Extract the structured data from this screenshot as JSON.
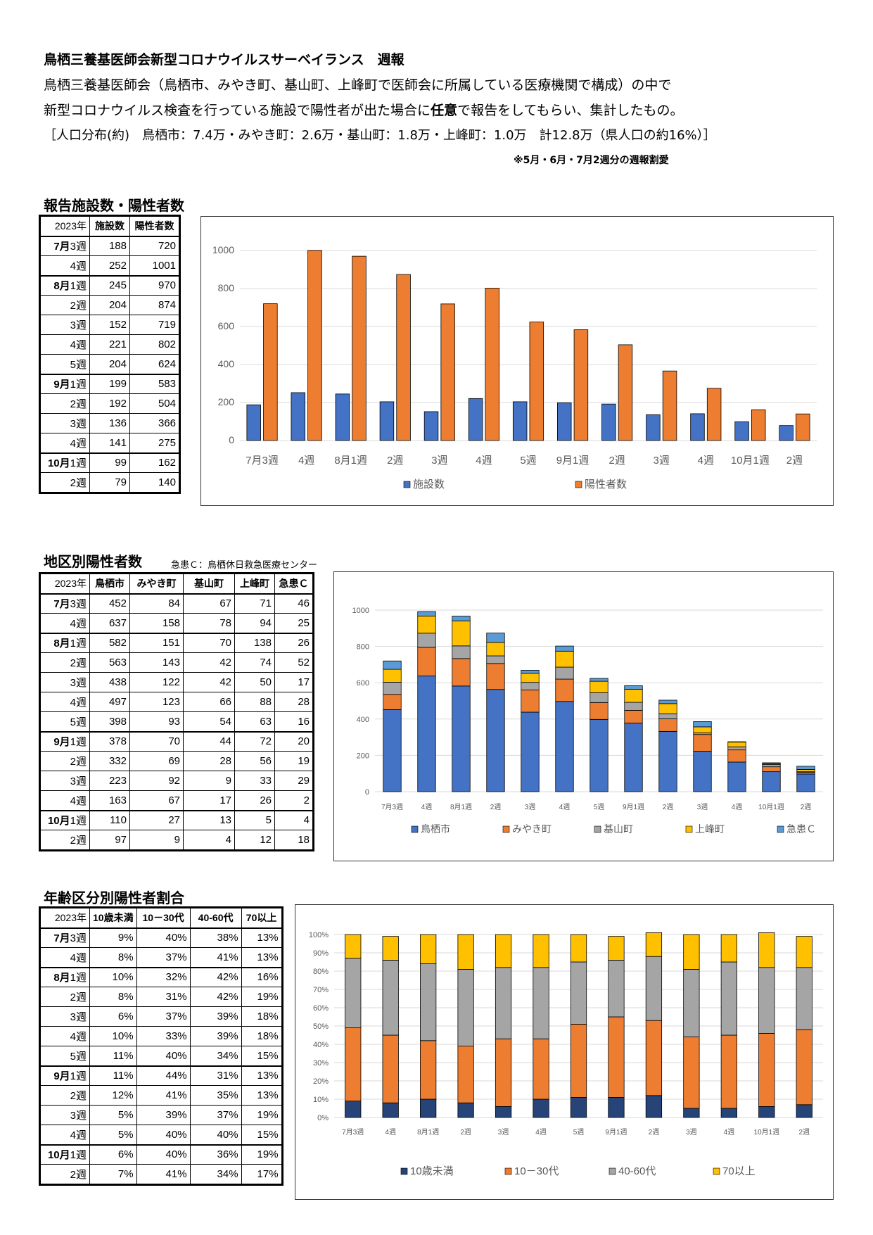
{
  "header": {
    "title": "鳥栖三養基医師会新型コロナウイルスサーベイランス　週報",
    "line1": "鳥栖三養基医師会（鳥栖市、みやき町、基山町、上峰町で医師会に所属している医療機関で構成）の中で",
    "line2_a": "新型コロナウイルス検査を行っている施設で陽性者が出た場合に",
    "line2_bold": "任意",
    "line2_b": "で報告をしてもらい、集計したもの。",
    "line3": "［人口分布(約)　鳥栖市：7.4万・みやき町：2.6万・基山町：1.8万・上峰町：1.0万　計12.8万（県人口の約16%）］",
    "note": "※5月・6月・7月2週分の週報割愛"
  },
  "section1": {
    "title": "報告施設数・陽性者数",
    "columns": [
      "2023年",
      "施設数",
      "陽性者数"
    ],
    "rows": [
      {
        "m": "7月",
        "w": "3週",
        "v": [
          "188",
          "720"
        ],
        "bt": true
      },
      {
        "m": "",
        "w": "4週",
        "v": [
          "252",
          "1001"
        ]
      },
      {
        "m": "8月",
        "w": "1週",
        "v": [
          "245",
          "970"
        ],
        "bt": true
      },
      {
        "m": "",
        "w": "2週",
        "v": [
          "204",
          "874"
        ]
      },
      {
        "m": "",
        "w": "3週",
        "v": [
          "152",
          "719"
        ]
      },
      {
        "m": "",
        "w": "4週",
        "v": [
          "221",
          "802"
        ]
      },
      {
        "m": "",
        "w": "5週",
        "v": [
          "204",
          "624"
        ]
      },
      {
        "m": "9月",
        "w": "1週",
        "v": [
          "199",
          "583"
        ],
        "bt": true
      },
      {
        "m": "",
        "w": "2週",
        "v": [
          "192",
          "504"
        ]
      },
      {
        "m": "",
        "w": "3週",
        "v": [
          "136",
          "366"
        ]
      },
      {
        "m": "",
        "w": "4週",
        "v": [
          "141",
          "275"
        ]
      },
      {
        "m": "10月",
        "w": "1週",
        "v": [
          "99",
          "162"
        ],
        "bt": true
      },
      {
        "m": "",
        "w": "2週",
        "v": [
          "79",
          "140"
        ]
      }
    ]
  },
  "section2": {
    "title": "地区別陽性者数",
    "subtitle": "急患Ｃ：鳥栖休日救急医療センター",
    "columns": [
      "2023年",
      "鳥栖市",
      "みやき町",
      "基山町",
      "上峰町",
      "急患Ｃ"
    ],
    "rows": [
      {
        "m": "7月",
        "w": "3週",
        "v": [
          "452",
          "84",
          "67",
          "71",
          "46"
        ],
        "bt": true
      },
      {
        "m": "",
        "w": "4週",
        "v": [
          "637",
          "158",
          "78",
          "94",
          "25"
        ]
      },
      {
        "m": "8月",
        "w": "1週",
        "v": [
          "582",
          "151",
          "70",
          "138",
          "26"
        ],
        "bt": true
      },
      {
        "m": "",
        "w": "2週",
        "v": [
          "563",
          "143",
          "42",
          "74",
          "52"
        ]
      },
      {
        "m": "",
        "w": "3週",
        "v": [
          "438",
          "122",
          "42",
          "50",
          "17"
        ]
      },
      {
        "m": "",
        "w": "4週",
        "v": [
          "497",
          "123",
          "66",
          "88",
          "28"
        ]
      },
      {
        "m": "",
        "w": "5週",
        "v": [
          "398",
          "93",
          "54",
          "63",
          "16"
        ]
      },
      {
        "m": "9月",
        "w": "1週",
        "v": [
          "378",
          "70",
          "44",
          "72",
          "20"
        ],
        "bt": true
      },
      {
        "m": "",
        "w": "2週",
        "v": [
          "332",
          "69",
          "28",
          "56",
          "19"
        ]
      },
      {
        "m": "",
        "w": "3週",
        "v": [
          "223",
          "92",
          "9",
          "33",
          "29"
        ]
      },
      {
        "m": "",
        "w": "4週",
        "v": [
          "163",
          "67",
          "17",
          "26",
          "2"
        ]
      },
      {
        "m": "10月",
        "w": "1週",
        "v": [
          "110",
          "27",
          "13",
          "5",
          "4"
        ],
        "bt": true
      },
      {
        "m": "",
        "w": "2週",
        "v": [
          "97",
          "9",
          "4",
          "12",
          "18"
        ]
      }
    ]
  },
  "section3": {
    "title": "年齢区分別陽性者割合",
    "columns": [
      "2023年",
      "10歳未満",
      "10－30代",
      "40-60代",
      "70以上"
    ],
    "rows": [
      {
        "m": "7月",
        "w": "3週",
        "v": [
          "9%",
          "40%",
          "38%",
          "13%"
        ],
        "bt": true
      },
      {
        "m": "",
        "w": "4週",
        "v": [
          "8%",
          "37%",
          "41%",
          "13%"
        ]
      },
      {
        "m": "8月",
        "w": "1週",
        "v": [
          "10%",
          "32%",
          "42%",
          "16%"
        ],
        "bt": true
      },
      {
        "m": "",
        "w": "2週",
        "v": [
          "8%",
          "31%",
          "42%",
          "19%"
        ]
      },
      {
        "m": "",
        "w": "3週",
        "v": [
          "6%",
          "37%",
          "39%",
          "18%"
        ]
      },
      {
        "m": "",
        "w": "4週",
        "v": [
          "10%",
          "33%",
          "39%",
          "18%"
        ]
      },
      {
        "m": "",
        "w": "5週",
        "v": [
          "11%",
          "40%",
          "34%",
          "15%"
        ]
      },
      {
        "m": "9月",
        "w": "1週",
        "v": [
          "11%",
          "44%",
          "31%",
          "13%"
        ],
        "bt": true
      },
      {
        "m": "",
        "w": "2週",
        "v": [
          "12%",
          "41%",
          "35%",
          "13%"
        ]
      },
      {
        "m": "",
        "w": "3週",
        "v": [
          "5%",
          "39%",
          "37%",
          "19%"
        ]
      },
      {
        "m": "",
        "w": "4週",
        "v": [
          "5%",
          "40%",
          "40%",
          "15%"
        ]
      },
      {
        "m": "10月",
        "w": "1週",
        "v": [
          "6%",
          "40%",
          "36%",
          "19%"
        ],
        "bt": true
      },
      {
        "m": "",
        "w": "2週",
        "v": [
          "7%",
          "41%",
          "34%",
          "17%"
        ]
      }
    ]
  },
  "chart_data": [
    {
      "type": "bar",
      "categories": [
        "7月3週",
        "4週",
        "8月1週",
        "2週",
        "3週",
        "4週",
        "5週",
        "9月1週",
        "2週",
        "3週",
        "4週",
        "10月1週",
        "2週"
      ],
      "series": [
        {
          "name": "施設数",
          "values": [
            188,
            252,
            245,
            204,
            152,
            221,
            204,
            199,
            192,
            136,
            141,
            99,
            79
          ],
          "color": "#4472C4"
        },
        {
          "name": "陽性者数",
          "values": [
            720,
            1001,
            970,
            874,
            719,
            802,
            624,
            583,
            504,
            366,
            275,
            162,
            140
          ],
          "color": "#ED7D31"
        }
      ],
      "ylim": [
        0,
        1000
      ],
      "yticks": [
        0,
        200,
        400,
        600,
        800,
        1000
      ],
      "legend": "bottom",
      "grid": true
    },
    {
      "type": "bar",
      "stacked": true,
      "categories": [
        "7月3週",
        "4週",
        "8月1週",
        "2週",
        "3週",
        "4週",
        "5週",
        "9月1週",
        "2週",
        "3週",
        "4週",
        "10月1週",
        "2週"
      ],
      "series": [
        {
          "name": "鳥栖市",
          "values": [
            452,
            637,
            582,
            563,
            438,
            497,
            398,
            378,
            332,
            223,
            163,
            110,
            97
          ],
          "color": "#4472C4"
        },
        {
          "name": "みやき町",
          "values": [
            84,
            158,
            151,
            143,
            122,
            123,
            93,
            70,
            69,
            92,
            67,
            27,
            9
          ],
          "color": "#ED7D31"
        },
        {
          "name": "基山町",
          "values": [
            67,
            78,
            70,
            42,
            42,
            66,
            54,
            44,
            28,
            9,
            17,
            13,
            4
          ],
          "color": "#A5A5A5"
        },
        {
          "name": "上峰町",
          "values": [
            71,
            94,
            138,
            74,
            50,
            88,
            63,
            72,
            56,
            33,
            26,
            5,
            12
          ],
          "color": "#FFC000"
        },
        {
          "name": "急患Ｃ",
          "values": [
            46,
            25,
            26,
            52,
            17,
            28,
            16,
            20,
            19,
            29,
            2,
            4,
            18
          ],
          "color": "#5B9BD5"
        }
      ],
      "ylim": [
        0,
        1000
      ],
      "yticks": [
        0,
        200,
        400,
        600,
        800,
        1000
      ],
      "legend": "bottom",
      "grid": true
    },
    {
      "type": "bar",
      "stacked": true,
      "percent": true,
      "categories": [
        "7月3週",
        "4週",
        "8月1週",
        "2週",
        "3週",
        "4週",
        "5週",
        "9月1週",
        "2週",
        "3週",
        "4週",
        "10月1週",
        "2週"
      ],
      "series": [
        {
          "name": "10歳未満",
          "values": [
            9,
            8,
            10,
            8,
            6,
            10,
            11,
            11,
            12,
            5,
            5,
            6,
            7
          ],
          "color": "#264478"
        },
        {
          "name": "10－30代",
          "values": [
            40,
            37,
            32,
            31,
            37,
            33,
            40,
            44,
            41,
            39,
            40,
            40,
            41
          ],
          "color": "#ED7D31"
        },
        {
          "name": "40-60代",
          "values": [
            38,
            41,
            42,
            42,
            39,
            39,
            34,
            31,
            35,
            37,
            40,
            36,
            34
          ],
          "color": "#A5A5A5"
        },
        {
          "name": "70以上",
          "values": [
            13,
            13,
            16,
            19,
            18,
            18,
            15,
            13,
            13,
            19,
            15,
            19,
            17
          ],
          "color": "#FFC000"
        }
      ],
      "ylim": [
        0,
        100
      ],
      "yticks": [
        "0%",
        "10%",
        "20%",
        "30%",
        "40%",
        "50%",
        "60%",
        "70%",
        "80%",
        "90%",
        "100%"
      ],
      "legend": "bottom",
      "grid": true
    }
  ]
}
